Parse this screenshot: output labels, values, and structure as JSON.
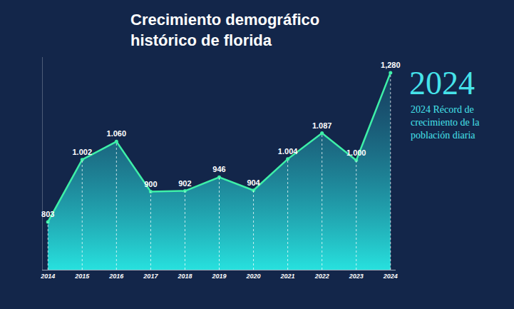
{
  "chart_data": {
    "type": "line",
    "title": "Crecimiento demográfico histórico de florida",
    "categories": [
      "2014",
      "2015",
      "2016",
      "2017",
      "2018",
      "2019",
      "2020",
      "2021",
      "2022",
      "2023",
      "2024"
    ],
    "values": [
      803,
      1002,
      1060,
      900,
      902,
      946,
      904,
      1004,
      1087,
      1000,
      1280
    ],
    "value_labels": [
      "803",
      "1.002",
      "1.060",
      "900",
      "902",
      "946",
      "904",
      "1.004",
      "1.087",
      "1.000",
      "1,280"
    ],
    "color": "#3ef0a8",
    "marker": "circle",
    "line_style": "solid",
    "ylim": [
      650,
      1330
    ],
    "data_labels": true,
    "tick_labels": "x",
    "grid": false,
    "annotations": [
      {
        "text": "2024"
      },
      {
        "text": "2024 Récord de crecimiento de la población diaria"
      }
    ]
  }
}
